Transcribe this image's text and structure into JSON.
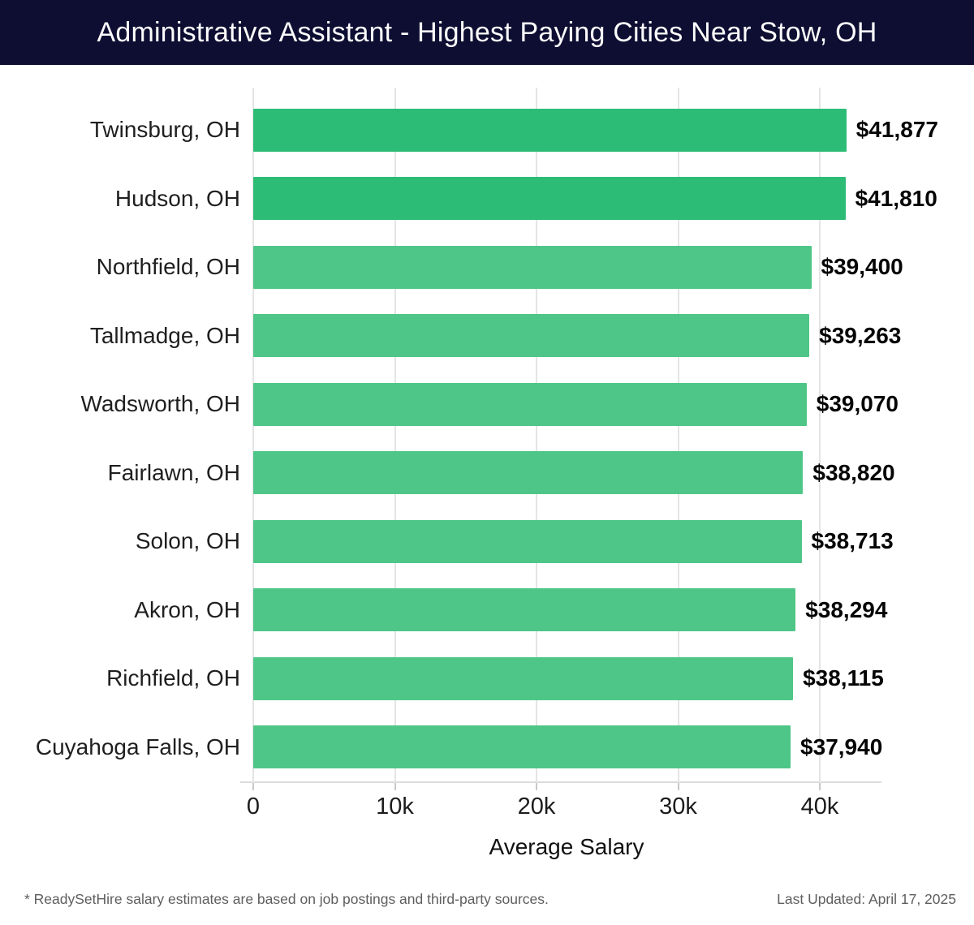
{
  "header": {
    "title": "Administrative Assistant - Highest Paying Cities Near Stow, OH",
    "background": "#0e0e33",
    "text_color": "#fcfcfc"
  },
  "chart_data": {
    "type": "bar",
    "orientation": "horizontal",
    "title": "Administrative Assistant - Highest Paying Cities Near Stow, OH",
    "categories": [
      "Twinsburg, OH",
      "Hudson, OH",
      "Northfield, OH",
      "Tallmadge, OH",
      "Wadsworth, OH",
      "Fairlawn, OH",
      "Solon, OH",
      "Akron, OH",
      "Richfield, OH",
      "Cuyahoga Falls, OH"
    ],
    "values": [
      41877,
      41810,
      39400,
      39263,
      39070,
      38820,
      38713,
      38294,
      38115,
      37940
    ],
    "value_labels": [
      "$41,877",
      "$41,810",
      "$39,400",
      "$39,263",
      "$39,070",
      "$38,820",
      "$38,713",
      "$38,294",
      "$38,115",
      "$37,940"
    ],
    "xlabel": "Average Salary",
    "ylabel": "",
    "x_ticks": [
      "0",
      "10k",
      "20k",
      "30k",
      "40k"
    ],
    "x_tick_values": [
      0,
      10000,
      20000,
      30000,
      40000
    ],
    "xlim": [
      0,
      44200
    ],
    "grid": true,
    "legend": false,
    "bar_color_highlight": "#2dbc76",
    "bar_color_default": "#4ec687",
    "highlight_count": 2
  },
  "footer": {
    "source_note": "* ReadySetHire salary estimates are based on job postings and third-party sources.",
    "last_updated": "Last Updated: April 17, 2025"
  }
}
